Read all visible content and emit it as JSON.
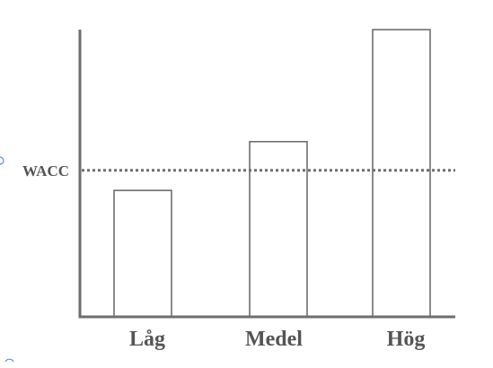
{
  "chart_data": {
    "type": "bar",
    "categories": [
      "Låg",
      "Medel",
      "Hög"
    ],
    "values": [
      44,
      61,
      100
    ],
    "ylim": [
      0,
      100
    ],
    "reference_line": {
      "label": "WACC",
      "value": 51,
      "style": "dotted"
    },
    "title": "",
    "xlabel": "",
    "ylabel": "",
    "grid": false,
    "legend": "none",
    "colors": {
      "axis": "#6e6e6e",
      "bar_fill": "#ffffff",
      "bar_stroke": "#6e6e6e",
      "line": "#6e6e6e",
      "text": "#555555",
      "marker": "#5b8ed6"
    }
  }
}
